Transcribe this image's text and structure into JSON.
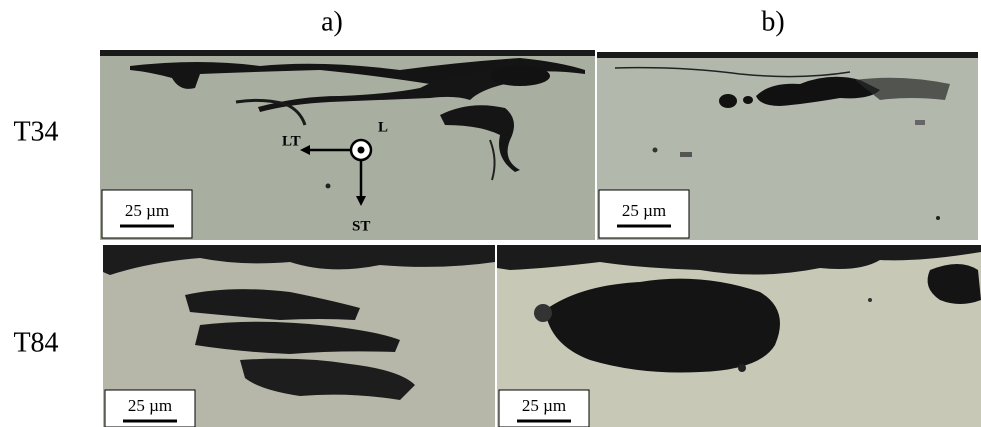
{
  "column_labels": [
    "a)",
    "b)"
  ],
  "rows": [
    {
      "label": "T34",
      "panels": [
        {
          "scale_bar": "25 µm",
          "axes": {
            "lt": "LT",
            "l": "L",
            "st": "ST"
          }
        },
        {
          "scale_bar": "25 µm"
        }
      ]
    },
    {
      "label": "T84",
      "panels": [
        {
          "scale_bar": "25 µm"
        },
        {
          "scale_bar": "25 µm"
        }
      ]
    }
  ]
}
